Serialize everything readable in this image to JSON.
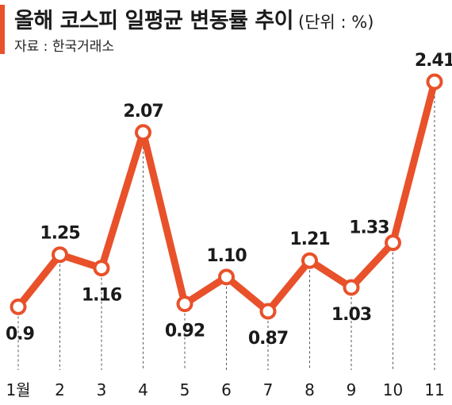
{
  "title": "올해 코스피 일평균 변동률 추이",
  "unit": "(단위 : %)",
  "source": "자료 : 한국거래소",
  "colors": {
    "accent": "#e8512a",
    "line": "#e8512a",
    "text": "#1a1a1a",
    "guide": "#555555"
  },
  "chart_data": {
    "type": "line",
    "title": "올해 코스피 일평균 변동률 추이",
    "xlabel": "",
    "ylabel": "",
    "categories": [
      "1월",
      "2",
      "3",
      "4",
      "5",
      "6",
      "7",
      "8",
      "9",
      "10",
      "11"
    ],
    "series": [
      {
        "values": [
          0.9,
          1.25,
          1.16,
          2.07,
          0.92,
          1.1,
          0.87,
          1.21,
          1.03,
          1.33,
          2.41
        ],
        "labels": [
          "0.9",
          "1.25",
          "1.16",
          "2.07",
          "0.92",
          "1.10",
          "0.87",
          "1.21",
          "1.03",
          "1.33",
          "2.41"
        ]
      }
    ],
    "label_positions": [
      "below",
      "above",
      "below",
      "above",
      "below",
      "above",
      "below",
      "above",
      "below",
      "left",
      "above"
    ],
    "grid": false,
    "legend": "none"
  }
}
